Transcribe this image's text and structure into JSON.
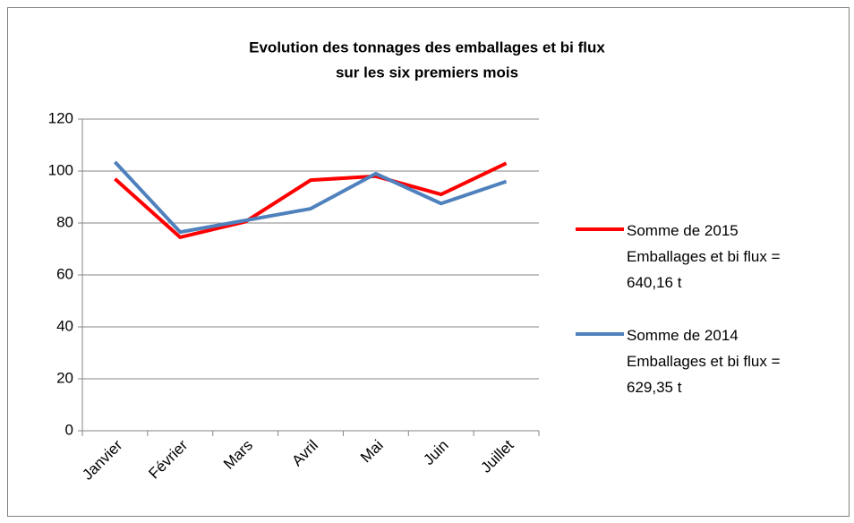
{
  "chart_data": {
    "type": "line",
    "title": [
      "Evolution des tonnages des emballages et bi flux",
      "sur les six premiers mois"
    ],
    "categories": [
      "Janvier",
      "Février",
      "Mars",
      "Avril",
      "Mai",
      "Juin",
      "Juillet"
    ],
    "series": [
      {
        "name": "Somme de 2015 Emballages et bi flux = 640,16 t",
        "color": "#ff0000",
        "values": [
          97,
          74.5,
          80.5,
          96.5,
          98,
          91,
          103
        ]
      },
      {
        "name": "Somme de 2014 Emballages et bi flux = 629,35 t",
        "color": "#4f81bd",
        "values": [
          103.5,
          76.5,
          81,
          85.5,
          99,
          87.5,
          96
        ]
      }
    ],
    "ylim": [
      0,
      120
    ],
    "yticks": [
      0,
      20,
      40,
      60,
      80,
      100,
      120
    ],
    "grid": true,
    "legend": "right"
  }
}
